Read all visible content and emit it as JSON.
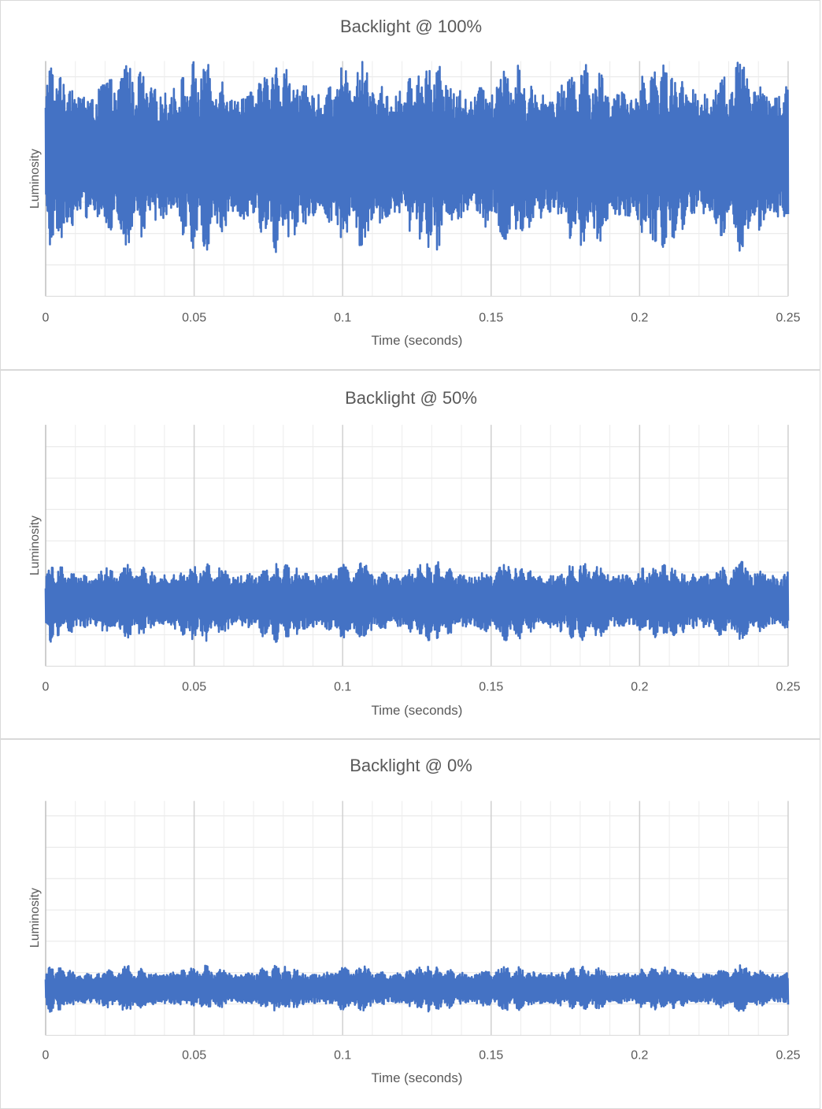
{
  "chart_data": [
    {
      "type": "line",
      "title": "Backlight @ 100%",
      "xlabel": "Time (seconds)",
      "ylabel": "Luminosity",
      "xlim": [
        0,
        0.25
      ],
      "x_ticks": [
        "0",
        "0.05",
        "0.1",
        "0.15",
        "0.2",
        "0.25"
      ],
      "y_ticks_labeled": false,
      "grid": true,
      "series": [
        {
          "color": "#4472C4",
          "center": 0.6,
          "amplitude": 0.42,
          "min": 0.02,
          "max": 1.0,
          "x_range": [
            0,
            0.25
          ]
        }
      ]
    },
    {
      "type": "line",
      "title": "Backlight @ 50%",
      "xlabel": "Time (seconds)",
      "ylabel": "Luminosity",
      "xlim": [
        0,
        0.25
      ],
      "x_ticks": [
        "0",
        "0.05",
        "0.1",
        "0.15",
        "0.2",
        "0.25"
      ],
      "y_ticks_labeled": false,
      "grid": true,
      "series": [
        {
          "color": "#4472C4",
          "center": 0.27,
          "amplitude": 0.17,
          "min": 0.07,
          "max": 0.5,
          "x_range": [
            0,
            0.25
          ]
        }
      ]
    },
    {
      "type": "line",
      "title": "Backlight @ 0%",
      "xlabel": "Time (seconds)",
      "ylabel": "Luminosity",
      "xlim": [
        0,
        0.25
      ],
      "x_ticks": [
        "0",
        "0.05",
        "0.1",
        "0.15",
        "0.2",
        "0.25"
      ],
      "y_ticks_labeled": false,
      "grid": true,
      "series": [
        {
          "color": "#4472C4",
          "center": 0.2,
          "amplitude": 0.1,
          "min": 0.07,
          "max": 0.36,
          "x_range": [
            0,
            0.25
          ]
        }
      ]
    }
  ]
}
